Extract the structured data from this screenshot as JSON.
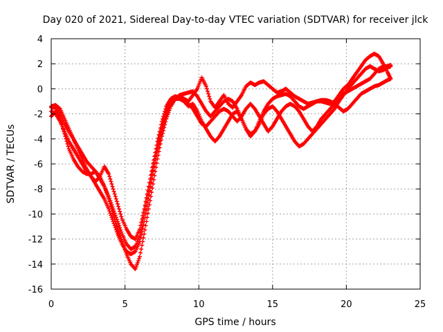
{
  "chart_data": {
    "type": "scatter",
    "title": "Day 020 of 2021, Sidereal Day-to-day VTEC variation (SDTVAR) for receiver jlck",
    "xlabel": "GPS time / hours",
    "ylabel": "SDTVAR / TECUs",
    "xlim": [
      0,
      25
    ],
    "ylim": [
      -16,
      4
    ],
    "xticks": [
      0,
      5,
      10,
      15,
      20,
      25
    ],
    "yticks": [
      -16,
      -14,
      -12,
      -10,
      -8,
      -6,
      -4,
      -2,
      0,
      2,
      4
    ],
    "grid": true,
    "marker": "plus",
    "color": "#ff0000",
    "series": [
      {
        "x": [
          0.0,
          0.3,
          0.6,
          0.9,
          1.2,
          1.5,
          1.8,
          2.1,
          2.4,
          2.7,
          3.0,
          3.3,
          3.6,
          3.9,
          4.2,
          4.5,
          4.8,
          5.1,
          5.4,
          5.7,
          6.0,
          6.3,
          6.6,
          6.9,
          7.2,
          7.5,
          7.8,
          8.1,
          8.4,
          8.7,
          9.0,
          9.3,
          9.6,
          9.9,
          10.2,
          10.5,
          10.8,
          11.1,
          11.4,
          11.7,
          12.0,
          12.3,
          12.6,
          12.9,
          13.2,
          13.5,
          13.8,
          14.1,
          14.4,
          14.7,
          15.0,
          15.3,
          15.6,
          15.9,
          16.2,
          16.5,
          16.8,
          17.1,
          17.4,
          17.7,
          18.0,
          18.3,
          18.6,
          18.9,
          19.2,
          19.5,
          19.8,
          20.1,
          20.4,
          20.7,
          21.0,
          21.3,
          21.6,
          21.9,
          22.2,
          22.5,
          22.8,
          23.0
        ],
        "y": [
          -1.5,
          -1.5,
          -2.0,
          -2.8,
          -3.4,
          -4.0,
          -4.6,
          -5.2,
          -5.8,
          -6.2,
          -6.6,
          -7.2,
          -7.8,
          -8.6,
          -9.6,
          -10.6,
          -11.6,
          -12.4,
          -12.8,
          -12.6,
          -11.8,
          -10.0,
          -8.2,
          -6.2,
          -4.5,
          -3.0,
          -1.8,
          -1.0,
          -0.7,
          -0.6,
          -0.8,
          -1.0,
          -0.5,
          0.0,
          0.9,
          0.2,
          -1.0,
          -1.5,
          -1.0,
          -0.5,
          -1.2,
          -1.5,
          -1.0,
          -0.5,
          0.2,
          0.5,
          0.3,
          0.5,
          0.6,
          0.3,
          0.0,
          -0.3,
          -0.2,
          0.0,
          -0.3,
          -0.6,
          -0.8,
          -1.0,
          -1.2,
          -1.1,
          -1.0,
          -1.0,
          -1.1,
          -1.2,
          -1.0,
          -0.5,
          0.0,
          0.3,
          0.8,
          1.3,
          1.8,
          2.3,
          2.6,
          2.8,
          2.6,
          2.0,
          1.3,
          0.8
        ]
      },
      {
        "x": [
          0.0,
          0.3,
          0.6,
          0.9,
          1.2,
          1.5,
          1.8,
          2.1,
          2.4,
          2.7,
          3.0,
          3.3,
          3.6,
          3.9,
          4.2,
          4.5,
          4.8,
          5.1,
          5.4,
          5.7,
          6.0,
          6.3,
          6.6,
          6.9,
          7.2,
          7.5,
          7.8,
          8.1,
          8.4,
          8.7,
          9.0,
          9.3,
          9.6,
          9.9,
          10.2,
          10.5,
          10.8,
          11.1,
          11.4,
          11.7,
          12.0,
          12.3,
          12.6,
          12.9,
          13.2,
          13.5,
          13.8,
          14.1,
          14.4,
          14.7,
          15.0,
          15.3,
          15.6,
          15.9,
          16.2,
          16.5,
          16.8,
          17.1,
          17.4,
          17.7,
          18.0,
          18.3,
          18.6,
          18.9,
          19.2,
          19.5,
          19.8,
          20.1,
          20.4,
          20.7,
          21.0,
          21.3,
          21.6,
          21.9,
          22.2,
          22.5,
          22.8,
          23.0
        ],
        "y": [
          -1.8,
          -2.0,
          -2.6,
          -3.4,
          -4.2,
          -4.8,
          -5.4,
          -6.0,
          -6.6,
          -7.0,
          -7.6,
          -8.2,
          -8.8,
          -9.6,
          -10.6,
          -11.6,
          -12.4,
          -13.0,
          -13.2,
          -13.0,
          -12.2,
          -10.6,
          -8.8,
          -6.8,
          -5.0,
          -3.4,
          -2.0,
          -1.2,
          -0.8,
          -0.8,
          -1.0,
          -1.4,
          -1.2,
          -1.8,
          -2.6,
          -3.2,
          -3.8,
          -4.2,
          -3.8,
          -3.2,
          -2.6,
          -2.0,
          -1.8,
          -2.4,
          -3.2,
          -3.8,
          -3.4,
          -2.8,
          -2.0,
          -1.6,
          -1.4,
          -1.8,
          -2.4,
          -3.0,
          -3.6,
          -4.2,
          -4.6,
          -4.4,
          -4.0,
          -3.6,
          -3.2,
          -2.8,
          -2.4,
          -2.0,
          -1.6,
          -1.0,
          -0.5,
          0.0,
          0.4,
          0.8,
          1.2,
          1.6,
          1.8,
          1.6,
          1.4,
          1.5,
          1.7,
          1.8
        ]
      },
      {
        "x": [
          0.0,
          0.3,
          0.6,
          0.9,
          1.2,
          1.5,
          1.8,
          2.1,
          2.4,
          2.7,
          3.0,
          3.3,
          3.6,
          3.9,
          4.2,
          4.5,
          4.8,
          5.1,
          5.4,
          5.7,
          6.0,
          6.3,
          6.6,
          6.9,
          7.2,
          7.5,
          7.8,
          8.1,
          8.4,
          8.7,
          9.0,
          9.3,
          9.6,
          9.9,
          10.2,
          10.5,
          10.8,
          11.1,
          11.4,
          11.7,
          12.0,
          12.3,
          12.6,
          12.9,
          13.2,
          13.5,
          13.8,
          14.1,
          14.4,
          14.7,
          15.0,
          15.3,
          15.6,
          15.9,
          16.2,
          16.5,
          16.8,
          17.1,
          17.4,
          17.7,
          18.0,
          18.3,
          18.6,
          18.9,
          19.2,
          19.5,
          19.8,
          20.1,
          20.4,
          20.7,
          21.0,
          21.3,
          21.6,
          21.9,
          22.2,
          22.5,
          22.8,
          23.0
        ],
        "y": [
          -2.2,
          -1.8,
          -2.4,
          -3.6,
          -4.8,
          -5.6,
          -6.2,
          -6.6,
          -6.8,
          -6.8,
          -6.6,
          -7.0,
          -7.8,
          -8.8,
          -10.0,
          -11.2,
          -12.2,
          -13.2,
          -14.0,
          -14.4,
          -13.4,
          -11.6,
          -9.6,
          -7.6,
          -5.6,
          -3.8,
          -2.4,
          -1.4,
          -0.8,
          -0.5,
          -0.4,
          -0.3,
          -0.2,
          -0.6,
          -1.2,
          -1.8,
          -2.2,
          -1.8,
          -1.4,
          -1.0,
          -0.8,
          -1.0,
          -1.6,
          -2.4,
          -3.2,
          -3.6,
          -3.4,
          -2.6,
          -1.8,
          -1.2,
          -0.8,
          -0.6,
          -0.5,
          -0.4,
          -0.6,
          -1.0,
          -1.4,
          -1.6,
          -1.4,
          -1.2,
          -1.0,
          -0.9,
          -0.9,
          -1.0,
          -1.2,
          -1.5,
          -1.8,
          -1.6,
          -1.2,
          -0.8,
          -0.4,
          -0.2,
          0.0,
          0.2,
          0.3,
          0.5,
          0.7,
          0.8
        ]
      },
      {
        "x": [
          0.0,
          0.3,
          0.6,
          0.9,
          1.2,
          1.5,
          1.8,
          2.1,
          2.4,
          2.7,
          3.0,
          3.3,
          3.6,
          3.9,
          4.2,
          4.5,
          4.8,
          5.1,
          5.4,
          5.7,
          6.0,
          6.3,
          6.6,
          6.9,
          7.2,
          7.5,
          7.8,
          8.1,
          8.4,
          8.7,
          9.0,
          9.3,
          9.6,
          9.9,
          10.2,
          10.5,
          10.8,
          11.1,
          11.4,
          11.7,
          12.0,
          12.3,
          12.6,
          12.9,
          13.2,
          13.5,
          13.8,
          14.1,
          14.4,
          14.7,
          15.0,
          15.3,
          15.6,
          15.9,
          16.2,
          16.5,
          16.8,
          17.1,
          17.4,
          17.7,
          18.0,
          18.3,
          18.6,
          18.9,
          19.2,
          19.5,
          19.8,
          20.1,
          20.4,
          20.7,
          21.0,
          21.3,
          21.6,
          21.9,
          22.2,
          22.5,
          22.8,
          23.0
        ],
        "y": [
          -1.4,
          -1.3,
          -1.6,
          -2.4,
          -3.2,
          -4.0,
          -4.8,
          -5.6,
          -6.4,
          -7.0,
          -7.4,
          -7.0,
          -6.2,
          -6.8,
          -8.0,
          -9.2,
          -10.4,
          -11.2,
          -11.8,
          -12.0,
          -11.2,
          -9.6,
          -7.8,
          -6.0,
          -4.2,
          -2.6,
          -1.4,
          -0.8,
          -0.6,
          -0.7,
          -0.9,
          -1.2,
          -1.6,
          -2.2,
          -2.8,
          -3.0,
          -2.6,
          -2.2,
          -1.8,
          -1.6,
          -1.8,
          -2.2,
          -2.6,
          -2.2,
          -1.6,
          -1.2,
          -1.6,
          -2.2,
          -2.8,
          -3.4,
          -3.0,
          -2.4,
          -1.8,
          -1.4,
          -1.2,
          -1.4,
          -1.8,
          -2.4,
          -3.0,
          -3.4,
          -3.0,
          -2.4,
          -2.0,
          -1.6,
          -1.2,
          -0.8,
          -0.4,
          -0.2,
          0.0,
          0.2,
          0.4,
          0.6,
          0.8,
          1.2,
          1.6,
          1.8,
          1.8,
          1.9
        ]
      }
    ]
  }
}
